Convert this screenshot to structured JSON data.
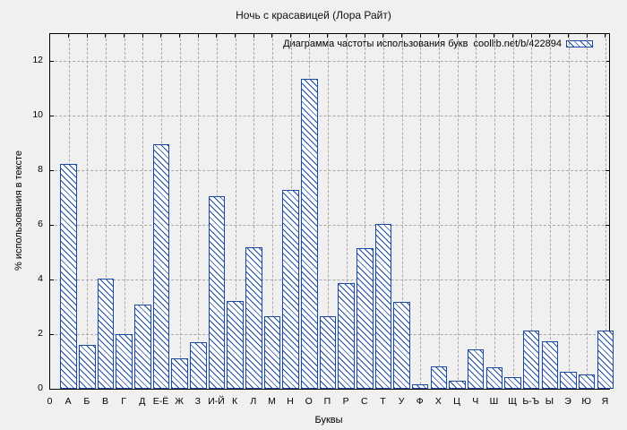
{
  "window": {
    "title": "Ночь с красавицей (Лора Райт)"
  },
  "chart_data": {
    "type": "bar",
    "title": "Ночь с красавицей (Лора Райт)",
    "legend_label": "Диаграмма частоты использования букв  coollib.net/b/422894",
    "legend_position": "top-right-inside",
    "xlabel": "Буквы",
    "ylabel": "% использования в тексте",
    "x_first_tick": "0",
    "categories": [
      "А",
      "Б",
      "В",
      "Г",
      "Д",
      "Е-Ё",
      "Ж",
      "З",
      "И-Й",
      "К",
      "Л",
      "М",
      "Н",
      "О",
      "П",
      "Р",
      "С",
      "Т",
      "У",
      "Ф",
      "Х",
      "Ц",
      "Ч",
      "Ш",
      "Щ",
      "Ь-Ъ",
      "Ы",
      "Э",
      "Ю",
      "Я"
    ],
    "values": [
      8.25,
      1.62,
      4.05,
      2.0,
      3.07,
      8.95,
      1.12,
      1.72,
      7.05,
      3.21,
      5.2,
      2.67,
      7.3,
      11.35,
      2.67,
      3.88,
      5.15,
      6.05,
      3.17,
      0.15,
      0.81,
      0.28,
      1.44,
      0.8,
      0.42,
      2.14,
      1.75,
      0.63,
      0.51,
      2.14
    ],
    "y_ticks": [
      0,
      2,
      4,
      6,
      8,
      10,
      12
    ],
    "ylim": [
      0,
      13
    ],
    "grid": true,
    "bar_style": "hatched-diagonal"
  },
  "colors": {
    "bar": "#1b4aa5",
    "grid": "#a9a9a9",
    "background": "#f0f0f0",
    "axis": "#000000"
  }
}
